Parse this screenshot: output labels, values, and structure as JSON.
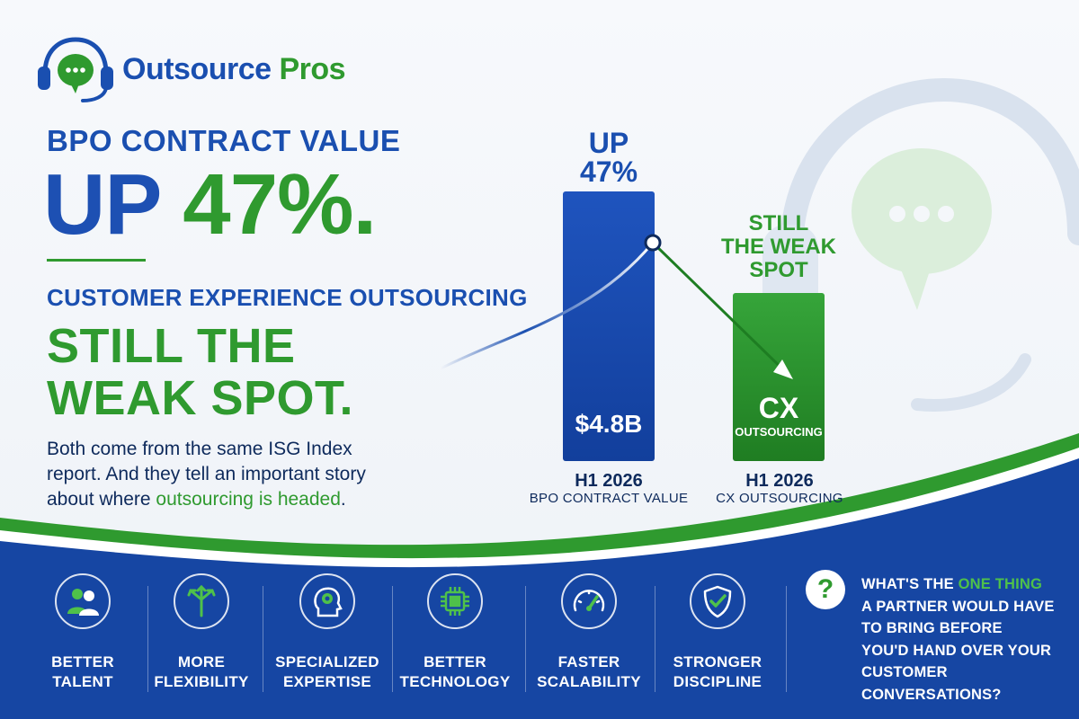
{
  "brand": {
    "name_part1": "Outsource",
    "name_part2": "Pros",
    "logo_icon": "headset-chat-icon"
  },
  "headline": {
    "kicker": "BPO CONTRACT VALUE",
    "big_up": "UP",
    "big_pct": "47%.",
    "subhead": "CUSTOMER EXPERIENCE OUTSOURCING",
    "weak_line1": "STILL THE",
    "weak_line2": "WEAK SPOT."
  },
  "body": {
    "line1": "Both come from the same ISG Index",
    "line2": "report. And they tell an important story",
    "line3_prefix": "about where ",
    "line3_highlight": "outsourcing is headed",
    "line3_suffix": "."
  },
  "chart_data": {
    "type": "bar",
    "categories": [
      "BPO CONTRACT VALUE",
      "CX OUTSOURCING"
    ],
    "bars": [
      {
        "label_top_line1": "UP",
        "label_top_line2": "47%",
        "value_text": "$4.8B",
        "period": "H1 2026",
        "caption": "BPO CONTRACT VALUE",
        "color": "#1a4fb0"
      },
      {
        "label_top_line1": "STILL",
        "label_top_line2": "THE WEAK",
        "label_top_line3": "SPOT",
        "value_text": "CX",
        "value_subtext": "OUTSOURCING",
        "period": "H1 2026",
        "caption": "CX OUTSOURCING",
        "color": "#2f9a2f"
      }
    ]
  },
  "features": [
    {
      "icon": "people-icon",
      "label": "BETTER\nTALENT"
    },
    {
      "icon": "split-arrows-icon",
      "label": "MORE\nFLEXIBILITY"
    },
    {
      "icon": "head-gear-icon",
      "label": "SPECIALIZED\nEXPERTISE"
    },
    {
      "icon": "chip-icon",
      "label": "BETTER\nTECHNOLOGY"
    },
    {
      "icon": "speedometer-icon",
      "label": "FASTER\nSCALABILITY"
    },
    {
      "icon": "shield-check-icon",
      "label": "STRONGER\nDISCIPLINE"
    }
  ],
  "question": {
    "icon": "question-icon",
    "mark": "?",
    "line1_prefix": "WHAT'S THE ",
    "line1_highlight": "ONE THING",
    "line2": "A PARTNER WOULD HAVE",
    "line3": "TO BRING BEFORE",
    "line4": "YOU'D HAND OVER YOUR",
    "line5": "CUSTOMER CONVERSATIONS?"
  },
  "colors": {
    "blue": "#1a4fb0",
    "green": "#2f9a2f",
    "band": "#1646a3"
  }
}
